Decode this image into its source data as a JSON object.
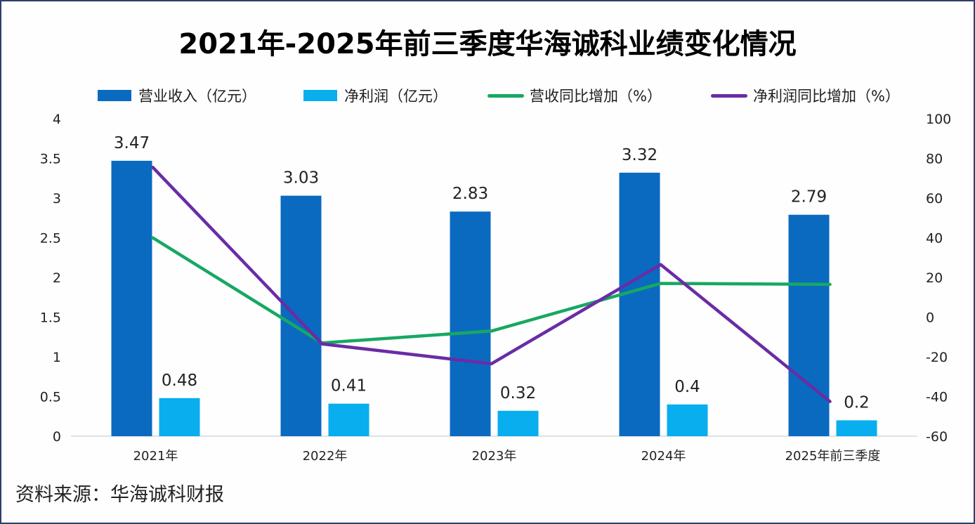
{
  "chart_data": {
    "type": "bar",
    "title": "2021年-2025年前三季度华海诚科业绩变化情况",
    "categories": [
      "2021年",
      "2022年",
      "2023年",
      "2024年",
      "2025年前三季度"
    ],
    "series": [
      {
        "name": "营业收入（亿元）",
        "kind": "bar",
        "axis": "left",
        "color": "#0a6ac0",
        "values": [
          3.47,
          3.03,
          2.83,
          3.32,
          2.79
        ]
      },
      {
        "name": "净利润（亿元）",
        "kind": "bar",
        "axis": "left",
        "color": "#08aeee",
        "values": [
          0.48,
          0.41,
          0.32,
          0.4,
          0.2
        ]
      },
      {
        "name": "营收同比增加（%）",
        "kind": "line",
        "axis": "right",
        "color": "#17a862",
        "values": [
          40,
          -13,
          -7,
          17,
          16.5
        ]
      },
      {
        "name": "净利润同比增加（%）",
        "kind": "line",
        "axis": "right",
        "color": "#6a2ca6",
        "values": [
          75.5,
          -13.5,
          -23.5,
          26.5,
          -42.5
        ]
      }
    ],
    "bar_labels": [
      [
        "3.47",
        "3.03",
        "2.83",
        "3.32",
        "2.79"
      ],
      [
        "0.48",
        "0.41",
        "0.32",
        "0.4",
        "0.2"
      ]
    ],
    "y_left": {
      "min": 0,
      "max": 4,
      "ticks": [
        "0",
        "0.5",
        "1",
        "1.5",
        "2",
        "2.5",
        "3",
        "3.5",
        "4"
      ],
      "tick_values": [
        0,
        0.5,
        1,
        1.5,
        2,
        2.5,
        3,
        3.5,
        4
      ]
    },
    "y_right": {
      "min": -60,
      "max": 100,
      "ticks": [
        "-60",
        "-40",
        "-20",
        "0",
        "20",
        "40",
        "60",
        "80",
        "100"
      ],
      "tick_values": [
        -60,
        -40,
        -20,
        0,
        20,
        40,
        60,
        80,
        100
      ]
    },
    "xlabel": "",
    "ylabel": "",
    "grid": false,
    "legend_position": "top"
  },
  "source_note": "资料来源：华海诚科财报"
}
